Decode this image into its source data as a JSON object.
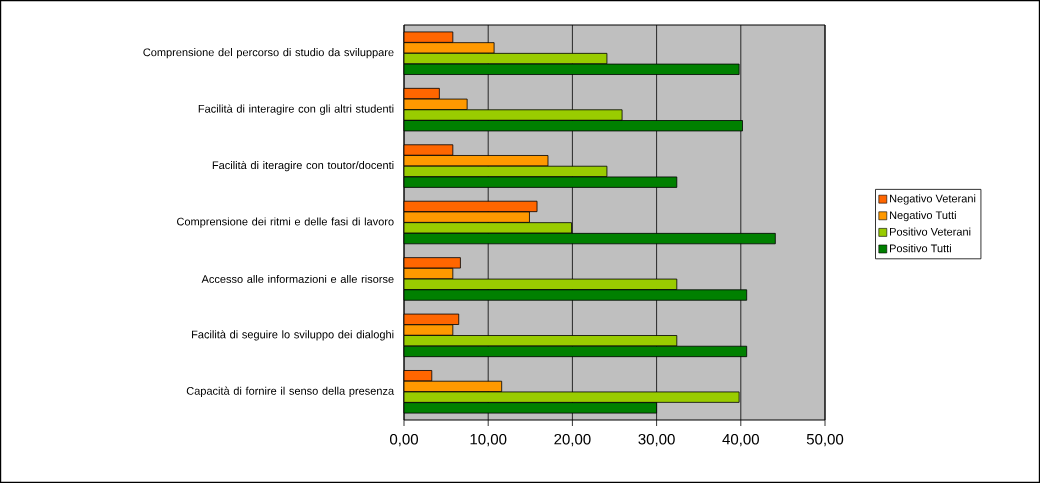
{
  "chart_data": {
    "type": "bar",
    "orientation": "horizontal",
    "categories": [
      "Comprensione del percorso di studio da sviluppare",
      "Facilità di interagire con gli altri studenti",
      "Facilità di iteragire con toutor/docenti",
      "Comprensione dei ritmi e delle fasi di lavoro",
      "Accesso alle informazioni e alle risorse",
      "Facilità di seguire lo sviluppo dei dialoghi",
      "Capacità di fornire il senso della presenza"
    ],
    "series": [
      {
        "name": "Negativo Veterani",
        "color": "#ff6600",
        "values": [
          5.8,
          4.2,
          5.8,
          15.8,
          6.7,
          6.5,
          3.3
        ]
      },
      {
        "name": "Negativo Tutti",
        "color": "#ff9900",
        "values": [
          10.7,
          7.5,
          17.1,
          14.9,
          5.8,
          5.8,
          11.6
        ]
      },
      {
        "name": "Positivo Veterani",
        "color": "#99cc00",
        "values": [
          24.1,
          25.9,
          24.1,
          19.9,
          32.4,
          32.4,
          39.8
        ]
      },
      {
        "name": "Positivo Tutti",
        "color": "#008000",
        "values": [
          39.8,
          40.2,
          32.4,
          44.1,
          40.7,
          40.7,
          30.0
        ]
      }
    ],
    "xlim": [
      0,
      50
    ],
    "xticks": [
      {
        "value": 0,
        "label": "0,00"
      },
      {
        "value": 10,
        "label": "10,00"
      },
      {
        "value": 20,
        "label": "20,00"
      },
      {
        "value": 30,
        "label": "30,00"
      },
      {
        "value": 40,
        "label": "40,00"
      },
      {
        "value": 50,
        "label": "50,00"
      }
    ],
    "grid": "x",
    "legend": "right"
  }
}
